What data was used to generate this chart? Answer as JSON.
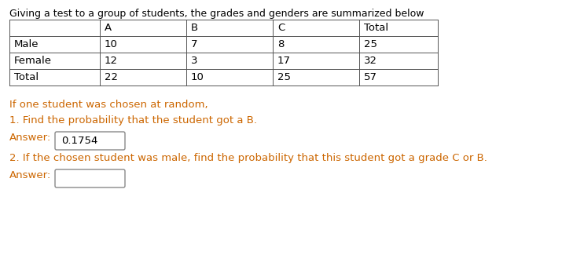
{
  "title": "Giving a test to a group of students, the grades and genders are summarized below",
  "table_headers": [
    "",
    "A",
    "B",
    "C",
    "Total"
  ],
  "table_rows": [
    [
      "Male",
      "10",
      "7",
      "8",
      "25"
    ],
    [
      "Female",
      "12",
      "3",
      "17",
      "32"
    ],
    [
      "Total",
      "22",
      "10",
      "25",
      "57"
    ]
  ],
  "question_intro": "If one student was chosen at random,",
  "question1": "1. Find the probability that the student got a B.",
  "answer1_label": "Answer:",
  "answer1_value": "0.1754",
  "question2": "2. If the chosen student was male, find the probability that this student got a grade C or B.",
  "answer2_label": "Answer:",
  "answer2_value": "",
  "text_color": "#000000",
  "orange_color": "#cc6600",
  "bg_color": "#ffffff",
  "table_line_color": "#555555",
  "font_size_title": 9.0,
  "font_size_body": 9.5,
  "font_size_table": 9.5
}
